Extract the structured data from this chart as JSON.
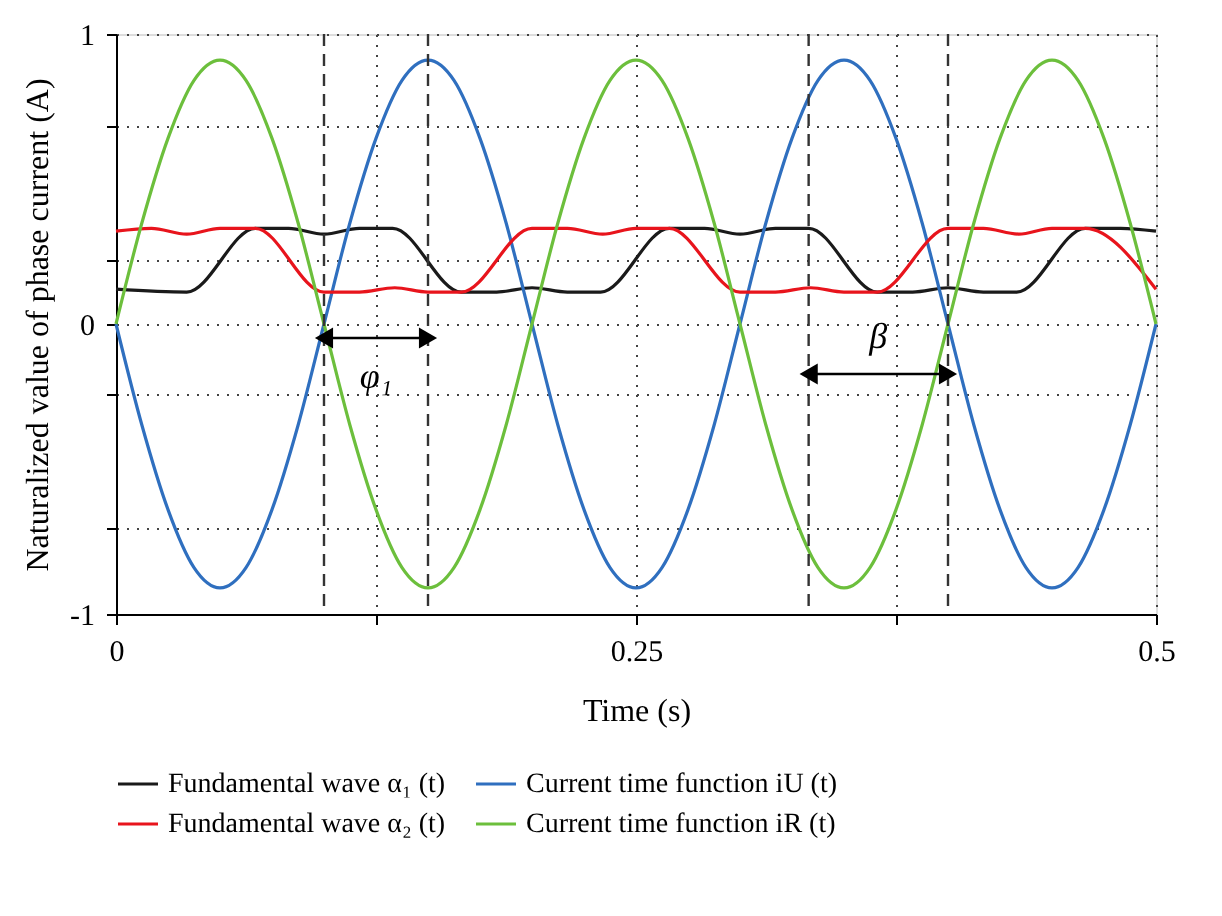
{
  "chart_data": {
    "type": "line",
    "xlabel": "Time (s)",
    "ylabel": "Naturalized value of phase current (A)",
    "xlim": [
      0,
      0.5
    ],
    "ylim": [
      -1,
      1
    ],
    "xticks": [
      0,
      {
        "value": 0.125,
        "label": null
      },
      0.25,
      {
        "value": 0.375,
        "label": null
      },
      0.5
    ],
    "yticks": [
      -1,
      {
        "value": -0.7,
        "label": null
      },
      {
        "value": -0.24,
        "label": null
      },
      0,
      {
        "value": 0.22,
        "label": null
      },
      {
        "value": 0.68,
        "label": null
      },
      1
    ],
    "grid": true,
    "legend": "bottom",
    "line_style": "solid",
    "marker": "none",
    "series": [
      {
        "name": "Fundamental wave α₁ (t)",
        "color": "#1a1a1a",
        "x": [
          0,
          0.034,
          0.067,
          0.083,
          0.1,
          0.117,
          0.133,
          0.166,
          0.183,
          0.2,
          0.217,
          0.233,
          0.266,
          0.283,
          0.3,
          0.317,
          0.333,
          0.366,
          0.383,
          0.4,
          0.417,
          0.433,
          0.466,
          0.483,
          0.5
        ],
        "values": [
          0.12,
          0.11,
          0.33,
          0.33,
          0.31,
          0.33,
          0.33,
          0.11,
          0.11,
          0.125,
          0.11,
          0.11,
          0.33,
          0.33,
          0.31,
          0.33,
          0.33,
          0.11,
          0.11,
          0.125,
          0.11,
          0.11,
          0.33,
          0.33,
          0.32
        ]
      },
      {
        "name": "Current time function iU (t)",
        "color": "#2f6fbf",
        "x": [
          0,
          0.0125,
          0.025,
          0.0375,
          0.05,
          0.0625,
          0.075,
          0.0875,
          0.1,
          0.1125,
          0.125,
          0.1375,
          0.15,
          0.1625,
          0.175,
          0.1875,
          0.2,
          0.2125,
          0.225,
          0.2375,
          0.25,
          0.2625,
          0.275,
          0.2875,
          0.3,
          0.3125,
          0.325,
          0.3375,
          0.35,
          0.3625,
          0.375,
          0.3875,
          0.4,
          0.4125,
          0.425,
          0.4375,
          0.45,
          0.4625,
          0.475,
          0.4875,
          0.5
        ],
        "values": [
          0,
          -0.35,
          -0.64,
          -0.84,
          -0.91,
          -0.84,
          -0.64,
          -0.35,
          0,
          0.35,
          0.64,
          0.84,
          0.91,
          0.84,
          0.64,
          0.35,
          0,
          -0.35,
          -0.64,
          -0.84,
          -0.91,
          -0.84,
          -0.64,
          -0.35,
          0,
          0.35,
          0.64,
          0.84,
          0.91,
          0.84,
          0.64,
          0.35,
          0,
          -0.35,
          -0.64,
          -0.84,
          -0.91,
          -0.84,
          -0.64,
          -0.35,
          0
        ]
      },
      {
        "name": "Fundamental wave α₂ (t)",
        "color": "#e8141c",
        "x": [
          0,
          0.017,
          0.034,
          0.05,
          0.067,
          0.1,
          0.117,
          0.134,
          0.15,
          0.166,
          0.2,
          0.217,
          0.234,
          0.25,
          0.266,
          0.3,
          0.317,
          0.334,
          0.35,
          0.366,
          0.4,
          0.417,
          0.434,
          0.45,
          0.466,
          0.5
        ],
        "values": [
          0.32,
          0.33,
          0.31,
          0.33,
          0.33,
          0.11,
          0.11,
          0.125,
          0.11,
          0.11,
          0.33,
          0.33,
          0.31,
          0.33,
          0.33,
          0.11,
          0.11,
          0.125,
          0.11,
          0.11,
          0.33,
          0.33,
          0.31,
          0.33,
          0.33,
          0.12
        ]
      },
      {
        "name": "Current time function iR (t)",
        "color": "#6cbf3c",
        "x": [
          0,
          0.0125,
          0.025,
          0.0375,
          0.05,
          0.0625,
          0.075,
          0.0875,
          0.1,
          0.1125,
          0.125,
          0.1375,
          0.15,
          0.1625,
          0.175,
          0.1875,
          0.2,
          0.2125,
          0.225,
          0.2375,
          0.25,
          0.2625,
          0.275,
          0.2875,
          0.3,
          0.3125,
          0.325,
          0.3375,
          0.35,
          0.3625,
          0.375,
          0.3875,
          0.4,
          0.4125,
          0.425,
          0.4375,
          0.45,
          0.4625,
          0.475,
          0.4875,
          0.5
        ],
        "values": [
          0,
          0.35,
          0.64,
          0.84,
          0.91,
          0.84,
          0.64,
          0.35,
          0,
          -0.35,
          -0.64,
          -0.84,
          -0.91,
          -0.84,
          -0.64,
          -0.35,
          0,
          0.35,
          0.64,
          0.84,
          0.91,
          0.84,
          0.64,
          0.35,
          0,
          -0.35,
          -0.64,
          -0.84,
          -0.91,
          -0.84,
          -0.64,
          -0.35,
          0,
          0.35,
          0.64,
          0.84,
          0.91,
          0.84,
          0.64,
          0.35,
          0
        ]
      }
    ],
    "ref_lines": [
      {
        "axis": "x",
        "value": 0.1,
        "color": "#333333",
        "line_style": "dashed"
      },
      {
        "axis": "x",
        "value": 0.15,
        "color": "#333333",
        "line_style": "dashed"
      },
      {
        "axis": "x",
        "value": 0.333,
        "color": "#333333",
        "line_style": "dashed"
      },
      {
        "axis": "x",
        "value": 0.4,
        "color": "#333333",
        "line_style": "dashed"
      }
    ],
    "annotations": [
      "φ₁",
      "β"
    ]
  }
}
